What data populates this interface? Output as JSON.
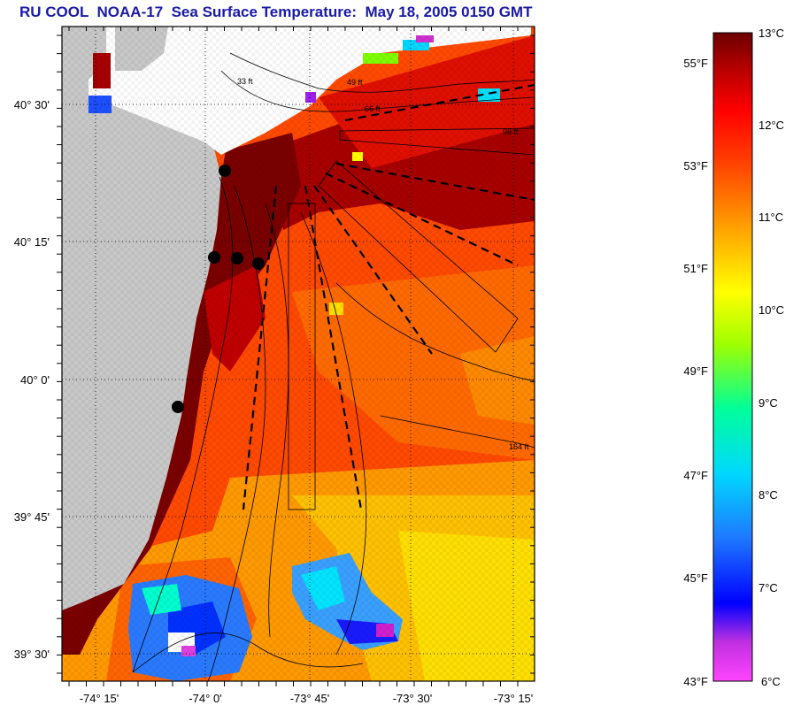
{
  "title": "RU COOL  NOAA-17  Sea Surface Temperature:  May 18, 2005 0150 GMT",
  "map": {
    "lat_labels": [
      "40° 30'",
      "40° 15'",
      "40° 0'",
      "39° 45'",
      "39° 30'"
    ],
    "lon_labels": [
      "-74° 15'",
      "-74° 0'",
      "-73° 45'",
      "-73° 30'",
      "-73° 15'"
    ],
    "isobath_labels": [
      "33 ft",
      "49 ft",
      "66 ft",
      "98 ft",
      "164 ft"
    ],
    "colors": {
      "land": "#c8c8c8",
      "cloud": "#ffffff",
      "warm": "#8b0000",
      "mid": "#ff3a00",
      "cool": "#ffd400"
    }
  },
  "colorbar": {
    "celsius_labels": [
      "13°C",
      "12°C",
      "11°C",
      "10°C",
      "9°C",
      "8°C",
      "7°C",
      "6°C"
    ],
    "fahrenheit_labels": [
      "55°F",
      "53°F",
      "51°F",
      "49°F",
      "47°F",
      "45°F",
      "43°F"
    ],
    "celsius_range": [
      6,
      13
    ],
    "stops": [
      "#ff44ff",
      "#a020f0",
      "#0000ff",
      "#1e90ff",
      "#00e5ff",
      "#00ff9a",
      "#7fff00",
      "#ffff00",
      "#ffb000",
      "#ff6000",
      "#ff0000",
      "#b00000",
      "#6b0000"
    ]
  }
}
